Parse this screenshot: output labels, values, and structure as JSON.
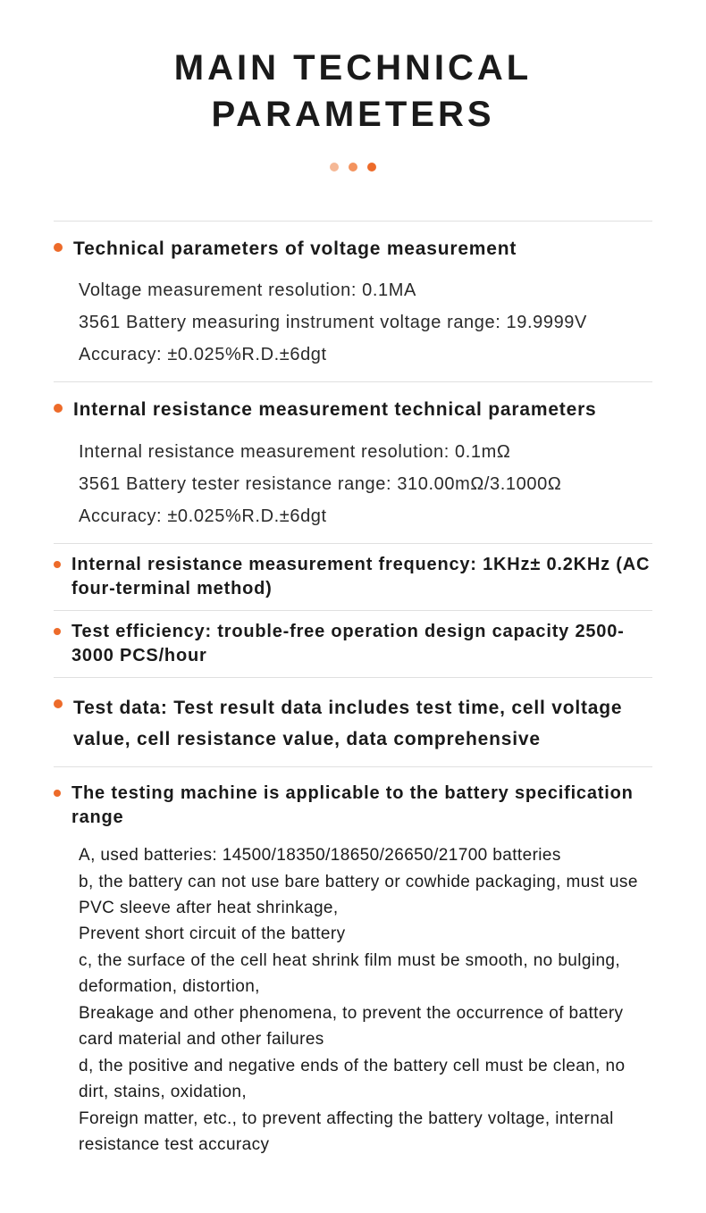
{
  "title": "MAIN TECHNICAL PARAMETERS",
  "colors": {
    "accent": "#ed6b2a",
    "dot_light": "#f5b896",
    "dot_med": "#f3935e",
    "dot_dark": "#ed6b2a",
    "text": "#1a1a1a",
    "body_text": "#2a2a2a",
    "divider": "#e0e0e0",
    "background": "#ffffff"
  },
  "sections": [
    {
      "title": "Technical parameters of voltage measurement",
      "lines": [
        "Voltage measurement resolution: 0.1MA",
        "3561 Battery measuring instrument voltage range: 19.9999V",
        "Accuracy: ±0.025%R.D.±6dgt"
      ]
    },
    {
      "title": "Internal resistance measurement technical parameters",
      "lines": [
        "Internal resistance measurement resolution: 0.1mΩ",
        "3561 Battery tester resistance range: 310.00mΩ/3.1000Ω",
        "Accuracy: ±0.025%R.D.±6dgt"
      ]
    },
    {
      "title": "Internal resistance measurement frequency: 1KHz± 0.2KHz (AC four-terminal method)"
    },
    {
      "title": "Test efficiency: trouble-free operation design capacity 2500-3000 PCS/hour"
    },
    {
      "title": "Test data: Test result data includes test time, cell voltage value, cell resistance value, data comprehensive"
    },
    {
      "title": "The testing machine is applicable to the battery specification range",
      "body": "A, used batteries: 14500/18350/18650/26650/21700 batteries\nb, the battery can not use bare battery or cowhide packaging, must use PVC sleeve after heat shrinkage,\nPrevent short circuit of the battery\nc, the surface of the cell heat shrink film must be smooth, no bulging, deformation, distortion,\nBreakage and other phenomena, to prevent the occurrence of battery card material and other failures\nd, the positive and negative ends of the battery cell must be clean, no dirt, stains, oxidation,\nForeign matter, etc., to prevent affecting the battery voltage, internal resistance test accuracy"
    }
  ]
}
